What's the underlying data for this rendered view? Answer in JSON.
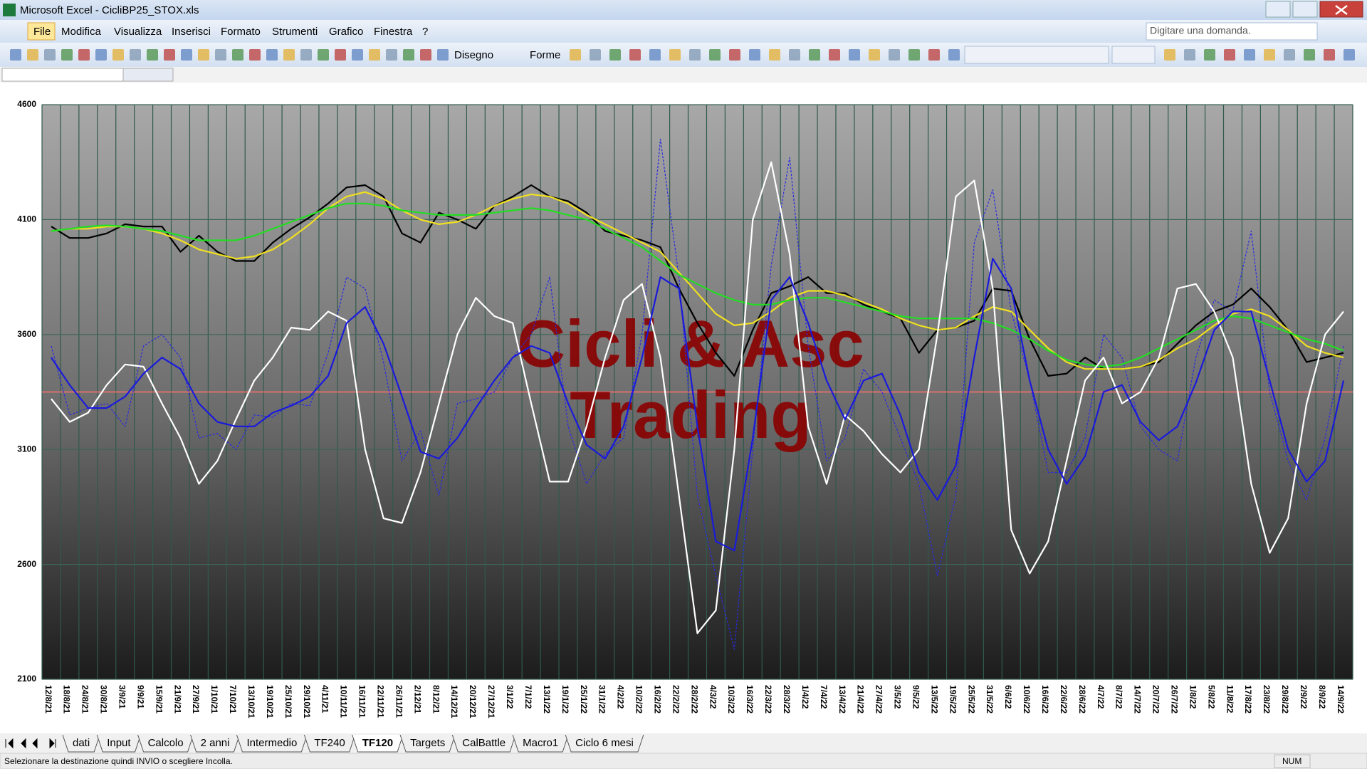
{
  "window": {
    "title": "Microsoft Excel - CicliBP25_STOX.xls"
  },
  "menu": [
    "File",
    "Modifica",
    "Visualizza",
    "Inserisci",
    "Formato",
    "Strumenti",
    "Grafico",
    "Finestra",
    "?"
  ],
  "help_box": "Digitare una domanda.",
  "drawing_toolbar": [
    "Disegno",
    "Forme"
  ],
  "sheet_tabs": [
    "dati",
    "Input",
    "Calcolo",
    "2 anni",
    "Intermedio",
    "TF240",
    "TF120",
    "Targets",
    "CalBattle",
    "Macro1",
    "Ciclo 6 mesi"
  ],
  "active_tab": 6,
  "status": {
    "message": "Selezionare la destinazione quindi INVIO o scegliere Incolla.",
    "num": "NUM"
  },
  "chart_data": {
    "type": "line",
    "watermark": [
      "Cicli & Asc",
      "Trading"
    ],
    "watermark_color": "#8b0000",
    "categories": [
      "12/8/21",
      "18/8/21",
      "24/8/21",
      "30/8/21",
      "3/9/21",
      "9/9/21",
      "15/9/21",
      "21/9/21",
      "27/9/21",
      "1/10/21",
      "7/10/21",
      "13/10/21",
      "19/10/21",
      "25/10/21",
      "29/10/21",
      "4/11/21",
      "10/11/21",
      "16/11/21",
      "22/11/21",
      "26/11/21",
      "2/12/21",
      "8/12/21",
      "14/12/21",
      "20/12/21",
      "27/12/21",
      "3/1/22",
      "7/1/22",
      "13/1/22",
      "19/1/22",
      "25/1/22",
      "31/1/22",
      "4/2/22",
      "10/2/22",
      "16/2/22",
      "22/2/22",
      "28/2/22",
      "4/3/22",
      "10/3/22",
      "16/3/22",
      "22/3/22",
      "28/3/22",
      "1/4/22",
      "7/4/22",
      "13/4/22",
      "21/4/22",
      "27/4/22",
      "3/5/22",
      "9/5/22",
      "13/5/22",
      "19/5/22",
      "25/5/22",
      "31/5/22",
      "6/6/22",
      "10/6/22",
      "16/6/22",
      "22/6/22",
      "28/6/22",
      "4/7/22",
      "8/7/22",
      "14/7/22",
      "20/7/22",
      "26/7/22",
      "1/8/22",
      "5/8/22",
      "11/8/22",
      "17/8/22",
      "23/8/22",
      "29/8/22",
      "2/9/22",
      "8/9/22",
      "14/9/22"
    ],
    "series": [
      {
        "color": "#000000",
        "values": [
          4070,
          4020,
          4020,
          4040,
          4080,
          4070,
          4070,
          3960,
          4030,
          3960,
          3920,
          3920,
          4000,
          4060,
          4110,
          4170,
          4240,
          4250,
          4200,
          4040,
          4000,
          4130,
          4100,
          4060,
          4160,
          4200,
          4250,
          4200,
          4180,
          4130,
          4050,
          4030,
          4010,
          3980,
          3800,
          3650,
          3520,
          3420,
          3620,
          3780,
          3810,
          3850,
          3780,
          3780,
          3730,
          3700,
          3670,
          3520,
          3620,
          3630,
          3660,
          3800,
          3790,
          3580,
          3420,
          3430,
          3500,
          3450,
          3450,
          3460,
          3480,
          3560,
          3640,
          3700,
          3730,
          3800,
          3720,
          3620,
          3480,
          3500,
          3520
        ]
      },
      {
        "color": "#f0e020",
        "values": [
          4050,
          4060,
          4060,
          4070,
          4070,
          4060,
          4040,
          4010,
          3970,
          3950,
          3930,
          3940,
          3970,
          4020,
          4080,
          4150,
          4200,
          4220,
          4190,
          4140,
          4100,
          4080,
          4090,
          4120,
          4160,
          4190,
          4210,
          4200,
          4170,
          4120,
          4080,
          4040,
          4000,
          3960,
          3870,
          3780,
          3690,
          3640,
          3650,
          3700,
          3760,
          3790,
          3790,
          3770,
          3740,
          3710,
          3670,
          3640,
          3620,
          3630,
          3680,
          3720,
          3700,
          3620,
          3540,
          3480,
          3450,
          3450,
          3450,
          3460,
          3490,
          3540,
          3580,
          3640,
          3690,
          3710,
          3680,
          3620,
          3550,
          3520,
          3500
        ]
      },
      {
        "color": "#22dd22",
        "values": [
          4050,
          4060,
          4070,
          4075,
          4070,
          4060,
          4050,
          4030,
          4010,
          4010,
          4010,
          4030,
          4060,
          4090,
          4120,
          4150,
          4170,
          4170,
          4160,
          4140,
          4130,
          4120,
          4120,
          4120,
          4130,
          4140,
          4150,
          4140,
          4120,
          4100,
          4060,
          4020,
          3980,
          3920,
          3860,
          3820,
          3780,
          3750,
          3730,
          3730,
          3750,
          3760,
          3760,
          3740,
          3720,
          3700,
          3680,
          3670,
          3670,
          3670,
          3670,
          3650,
          3620,
          3580,
          3530,
          3490,
          3470,
          3460,
          3470,
          3500,
          3540,
          3580,
          3620,
          3660,
          3680,
          3670,
          3640,
          3610,
          3580,
          3560,
          3530
        ]
      },
      {
        "color": "#ffffff",
        "values": [
          3320,
          3220,
          3260,
          3380,
          3470,
          3460,
          3300,
          3150,
          2950,
          3050,
          3230,
          3400,
          3500,
          3630,
          3620,
          3700,
          3660,
          3100,
          2800,
          2780,
          3000,
          3300,
          3600,
          3760,
          3680,
          3650,
          3300,
          2960,
          2960,
          3200,
          3500,
          3750,
          3820,
          3500,
          2900,
          2300,
          2400,
          3100,
          4100,
          4350,
          3950,
          3200,
          2950,
          3250,
          3180,
          3080,
          3000,
          3100,
          3600,
          4200,
          4270,
          3800,
          2750,
          2560,
          2700,
          3050,
          3400,
          3500,
          3300,
          3350,
          3500,
          3800,
          3820,
          3700,
          3500,
          2950,
          2650,
          2800,
          3300,
          3600,
          3700
        ]
      },
      {
        "color": "#1a1adc",
        "values": [
          3500,
          3380,
          3280,
          3280,
          3330,
          3430,
          3500,
          3450,
          3300,
          3220,
          3200,
          3200,
          3260,
          3290,
          3330,
          3420,
          3650,
          3720,
          3560,
          3330,
          3090,
          3060,
          3150,
          3280,
          3400,
          3500,
          3550,
          3520,
          3300,
          3120,
          3060,
          3200,
          3500,
          3850,
          3800,
          3200,
          2700,
          2660,
          3150,
          3750,
          3850,
          3650,
          3400,
          3230,
          3400,
          3430,
          3250,
          3000,
          2880,
          3030,
          3500,
          3930,
          3800,
          3400,
          3100,
          2950,
          3070,
          3350,
          3380,
          3220,
          3140,
          3200,
          3390,
          3620,
          3700,
          3700,
          3400,
          3100,
          2960,
          3050,
          3400
        ]
      },
      {
        "color": "#2a2ae0",
        "dashed": true,
        "values": [
          3550,
          3250,
          3280,
          3300,
          3200,
          3550,
          3600,
          3500,
          3150,
          3170,
          3100,
          3250,
          3240,
          3300,
          3290,
          3520,
          3850,
          3800,
          3480,
          3050,
          3180,
          2900,
          3300,
          3320,
          3350,
          3500,
          3600,
          3850,
          3200,
          2950,
          3080,
          3150,
          3600,
          4450,
          3850,
          2900,
          2550,
          2230,
          3100,
          3900,
          4370,
          3550,
          3050,
          3150,
          3450,
          3350,
          3150,
          2950,
          2550,
          2900,
          4000,
          4230,
          3700,
          3400,
          3000,
          3000,
          3150,
          3600,
          3500,
          3200,
          3100,
          3050,
          3500,
          3750,
          3700,
          4050,
          3350,
          3050,
          2880,
          3150,
          3550
        ]
      }
    ],
    "reference_line": 3350,
    "reference_color": "#ff7070",
    "ylim": [
      2100,
      4600
    ],
    "yticks": [
      2100,
      2600,
      3100,
      3600,
      4100,
      4600
    ],
    "grid": true
  }
}
